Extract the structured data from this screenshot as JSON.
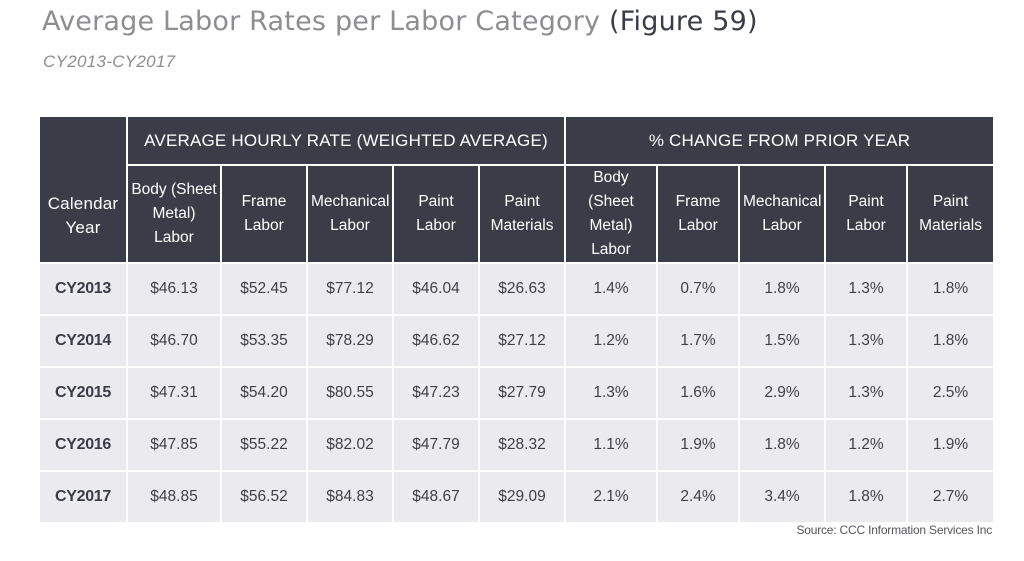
{
  "header": {
    "title": "Average Labor Rates per Labor Category",
    "figure_label": "(Figure 59)",
    "subtitle": "CY2013-CY2017"
  },
  "table": {
    "year_header": "Calendar Year",
    "group_headers": {
      "rates": "AVERAGE HOURLY RATE (WEIGHTED AVERAGE)",
      "change": "% CHANGE FROM PRIOR YEAR"
    },
    "column_headers": [
      "Body (Sheet Metal) Labor",
      "Frame Labor",
      "Mechanical Labor",
      "Paint Labor",
      "Paint Materials",
      "Body (Sheet Metal) Labor",
      "Frame Labor",
      "Mechanical Labor",
      "Paint Labor",
      "Paint Materials"
    ],
    "rows": [
      {
        "year": "CY2013",
        "cells": [
          "$46.13",
          "$52.45",
          "$77.12",
          "$46.04",
          "$26.63",
          "1.4%",
          "0.7%",
          "1.8%",
          "1.3%",
          "1.8%"
        ]
      },
      {
        "year": "CY2014",
        "cells": [
          "$46.70",
          "$53.35",
          "$78.29",
          "$46.62",
          "$27.12",
          "1.2%",
          "1.7%",
          "1.5%",
          "1.3%",
          "1.8%"
        ]
      },
      {
        "year": "CY2015",
        "cells": [
          "$47.31",
          "$54.20",
          "$80.55",
          "$47.23",
          "$27.79",
          "1.3%",
          "1.6%",
          "2.9%",
          "1.3%",
          "2.5%"
        ]
      },
      {
        "year": "CY2016",
        "cells": [
          "$47.85",
          "$55.22",
          "$82.02",
          "$47.79",
          "$28.32",
          "1.1%",
          "1.9%",
          "1.8%",
          "1.2%",
          "1.9%"
        ]
      },
      {
        "year": "CY2017",
        "cells": [
          "$48.85",
          "$56.52",
          "$84.83",
          "$48.67",
          "$29.09",
          "2.1%",
          "2.4%",
          "3.4%",
          "1.8%",
          "2.7%"
        ]
      }
    ]
  },
  "footer": {
    "source": "Source:  CCC Information Services Inc"
  }
}
